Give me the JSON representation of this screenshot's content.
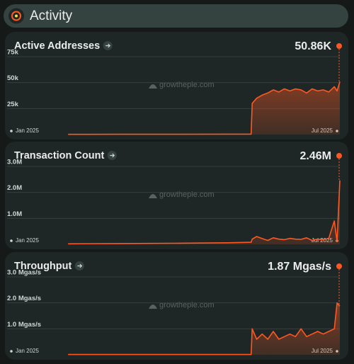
{
  "header": {
    "title": "Activity"
  },
  "watermark": "growthepie.com",
  "chart_data": [
    {
      "type": "area",
      "title": "Active Addresses",
      "current": {
        "value": 50860,
        "label": "50.86K"
      },
      "color": "#fe5822",
      "x": [
        1.1,
        2.0,
        3.0,
        4.0,
        4.4,
        4.42,
        4.5,
        4.6,
        4.7,
        4.8,
        4.9,
        5.0,
        5.1,
        5.2,
        5.3,
        5.4,
        5.5,
        5.6,
        5.7,
        5.8,
        5.9,
        5.95,
        6.0
      ],
      "values": [
        200,
        300,
        300,
        400,
        400,
        30000,
        35000,
        38000,
        40000,
        43000,
        41000,
        44000,
        42000,
        44000,
        43000,
        40000,
        44000,
        42000,
        43000,
        41000,
        46000,
        42000,
        50860
      ],
      "ylim": [
        0,
        75000
      ],
      "yticks": [
        {
          "value": 25000,
          "label": "25k"
        },
        {
          "value": 50000,
          "label": "50k"
        },
        {
          "value": 75000,
          "label": "75k"
        }
      ],
      "xlim": [
        0,
        6
      ],
      "xticks": [
        {
          "value": 0,
          "label": "Jan 2025"
        },
        {
          "value": 6,
          "label": "Jul 2025"
        }
      ],
      "grid": true
    },
    {
      "type": "area",
      "title": "Transaction Count",
      "current": {
        "value": 2460000,
        "label": "2.46M"
      },
      "color": "#fe5822",
      "x": [
        1.1,
        2.0,
        3.0,
        4.0,
        4.4,
        4.42,
        4.5,
        4.6,
        4.7,
        4.8,
        4.9,
        5.0,
        5.1,
        5.2,
        5.3,
        5.4,
        5.5,
        5.6,
        5.7,
        5.8,
        5.9,
        5.95,
        6.0
      ],
      "values": [
        20000,
        30000,
        40000,
        60000,
        80000,
        200000,
        300000,
        220000,
        150000,
        250000,
        200000,
        180000,
        230000,
        200000,
        190000,
        250000,
        150000,
        200000,
        180000,
        220000,
        900000,
        100000,
        2460000
      ],
      "ylim": [
        0,
        3000000
      ],
      "yticks": [
        {
          "value": 1000000,
          "label": "1.0M"
        },
        {
          "value": 2000000,
          "label": "2.0M"
        },
        {
          "value": 3000000,
          "label": "3.0M"
        }
      ],
      "xlim": [
        0,
        6
      ],
      "xticks": [
        {
          "value": 0,
          "label": "Jan 2025"
        },
        {
          "value": 6,
          "label": "Jul 2025"
        }
      ],
      "grid": true
    },
    {
      "type": "area",
      "title": "Throughput",
      "current": {
        "value": 1.87,
        "label": "1.87 Mgas/s"
      },
      "color": "#fe5822",
      "x": [
        1.1,
        2.0,
        3.0,
        4.0,
        4.4,
        4.42,
        4.5,
        4.6,
        4.7,
        4.8,
        4.9,
        5.0,
        5.1,
        5.2,
        5.3,
        5.4,
        5.5,
        5.6,
        5.7,
        5.8,
        5.9,
        5.95,
        6.0
      ],
      "values": [
        0.01,
        0.01,
        0.01,
        0.01,
        0.01,
        1.0,
        0.6,
        0.8,
        0.6,
        0.9,
        0.6,
        0.7,
        0.8,
        0.7,
        1.0,
        0.7,
        0.8,
        0.9,
        0.8,
        0.9,
        1.0,
        2.0,
        1.87
      ],
      "ylim": [
        0,
        3
      ],
      "yticks": [
        {
          "value": 1,
          "label": "1.0 Mgas/s"
        },
        {
          "value": 2,
          "label": "2.0 Mgas/s"
        },
        {
          "value": 3,
          "label": "3.0 Mgas/s"
        }
      ],
      "xlim": [
        0,
        6
      ],
      "xticks": [
        {
          "value": 0,
          "label": "Jan 2025"
        },
        {
          "value": 6,
          "label": "Jul 2025"
        }
      ],
      "grid": true
    }
  ]
}
